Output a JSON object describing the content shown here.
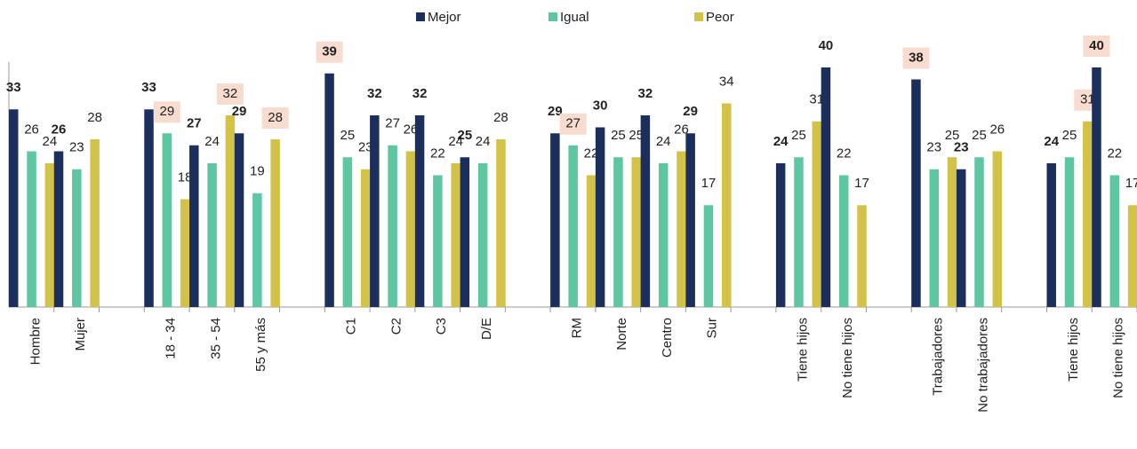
{
  "chart_data": {
    "type": "bar",
    "categories": [
      "Hombre",
      "Mujer",
      null,
      "18 - 34",
      "35 - 54",
      "55 y más",
      null,
      "C1",
      "C2",
      "C3",
      "D/E",
      null,
      "RM",
      "Norte",
      "Centro",
      "Sur",
      null,
      "Tiene hijos",
      "No tiene hijos",
      null,
      "Trabajadores",
      "No trabajadores",
      null,
      "Tiene hijos",
      "No tiene hijos"
    ],
    "series": [
      {
        "name": "Mejor",
        "color": "#1c2f5c",
        "bold": true,
        "values": [
          33,
          26,
          null,
          33,
          27,
          29,
          null,
          39,
          32,
          32,
          25,
          null,
          29,
          30,
          32,
          29,
          null,
          24,
          40,
          null,
          38,
          23,
          null,
          24,
          40
        ],
        "highlighted": [
          false,
          false,
          false,
          false,
          false,
          false,
          false,
          true,
          false,
          false,
          false,
          false,
          false,
          false,
          false,
          false,
          false,
          false,
          false,
          false,
          true,
          false,
          false,
          false,
          true
        ]
      },
      {
        "name": "Igual",
        "color": "#5ec6a0",
        "bold": false,
        "values": [
          26,
          23,
          null,
          29,
          24,
          19,
          null,
          25,
          27,
          22,
          24,
          null,
          27,
          25,
          24,
          17,
          null,
          25,
          22,
          null,
          23,
          25,
          null,
          25,
          22
        ],
        "highlighted": [
          false,
          false,
          false,
          true,
          false,
          false,
          false,
          false,
          false,
          false,
          false,
          false,
          true,
          false,
          false,
          false,
          false,
          false,
          false,
          false,
          false,
          false,
          false,
          false,
          false
        ]
      },
      {
        "name": "Peor",
        "color": "#d3c248",
        "bold": false,
        "values": [
          24,
          28,
          null,
          18,
          32,
          28,
          null,
          23,
          26,
          24,
          28,
          null,
          22,
          25,
          26,
          34,
          null,
          31,
          17,
          null,
          25,
          26,
          null,
          31,
          17
        ],
        "highlighted": [
          false,
          false,
          false,
          false,
          true,
          true,
          false,
          false,
          false,
          false,
          false,
          false,
          false,
          false,
          false,
          false,
          false,
          false,
          false,
          false,
          false,
          false,
          false,
          true,
          false
        ]
      }
    ],
    "ylim": [
      0,
      40
    ],
    "legend": "top"
  }
}
